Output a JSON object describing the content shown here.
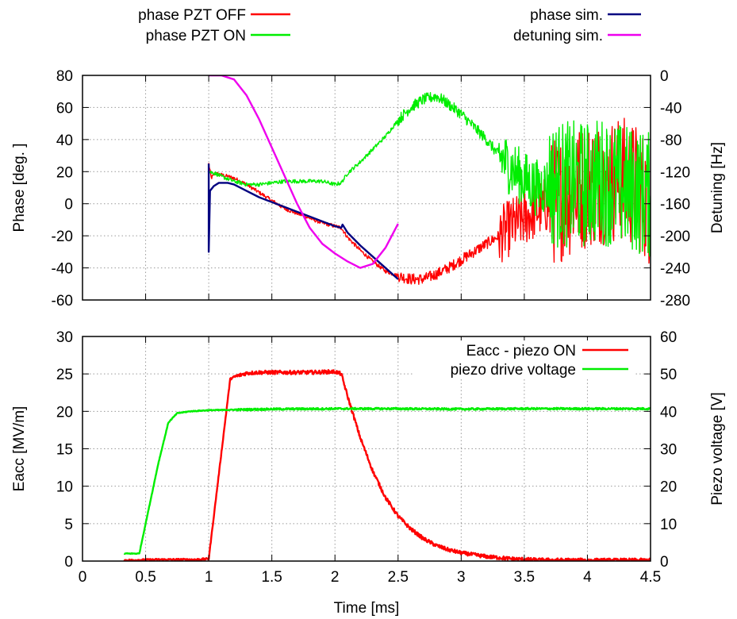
{
  "chart_data": [
    {
      "type": "line",
      "xlabel": "",
      "ylabel": "Phase [deg. ]",
      "y2label": "Detuning [Hz]",
      "xlim": [
        0,
        4.5
      ],
      "ylim": [
        -60,
        80
      ],
      "y2lim": [
        -280,
        0
      ],
      "xticks": [
        "0",
        "0.5",
        "1",
        "1.5",
        "2",
        "2.5",
        "3",
        "3.5",
        "4",
        "4.5"
      ],
      "yticks": [
        "-60",
        "-40",
        "-20",
        "0",
        "20",
        "40",
        "60",
        "80"
      ],
      "y2ticks": [
        "-280",
        "-240",
        "-200",
        "-160",
        "-120",
        "-80",
        "-40",
        "0"
      ],
      "grid": true,
      "legend_position": "top (above plot)",
      "series": [
        {
          "name": "phase PZT OFF",
          "color": "#ff0000",
          "axis": "y",
          "noisy": true,
          "points": [
            [
              1.0,
              25
            ],
            [
              1.02,
              16
            ],
            [
              1.05,
              19
            ],
            [
              1.1,
              18
            ],
            [
              1.2,
              16
            ],
            [
              1.3,
              12
            ],
            [
              1.4,
              7
            ],
            [
              1.5,
              2
            ],
            [
              1.6,
              -3
            ],
            [
              1.7,
              -6
            ],
            [
              1.8,
              -9
            ],
            [
              1.9,
              -12
            ],
            [
              2.0,
              -14
            ],
            [
              2.05,
              -15
            ],
            [
              2.1,
              -21
            ],
            [
              2.2,
              -29
            ],
            [
              2.3,
              -36
            ],
            [
              2.4,
              -42
            ],
            [
              2.5,
              -45
            ],
            [
              2.6,
              -47
            ],
            [
              2.7,
              -47
            ],
            [
              2.8,
              -44
            ],
            [
              2.9,
              -40
            ],
            [
              3.0,
              -35
            ],
            [
              3.1,
              -30
            ],
            [
              3.2,
              -25
            ],
            [
              3.3,
              -20
            ],
            [
              3.4,
              -14
            ],
            [
              3.5,
              -9
            ],
            [
              3.6,
              -4
            ],
            [
              3.7,
              0
            ],
            [
              3.8,
              4
            ],
            [
              3.9,
              8
            ],
            [
              4.0,
              12
            ],
            [
              4.1,
              14
            ],
            [
              4.2,
              15
            ],
            [
              4.3,
              15
            ],
            [
              4.4,
              10
            ],
            [
              4.45,
              5
            ],
            [
              4.5,
              0
            ]
          ]
        },
        {
          "name": "phase PZT ON",
          "color": "#00ee00",
          "axis": "y",
          "noisy": true,
          "points": [
            [
              1.0,
              20
            ],
            [
              1.05,
              19
            ],
            [
              1.1,
              17
            ],
            [
              1.2,
              14
            ],
            [
              1.3,
              12
            ],
            [
              1.4,
              12
            ],
            [
              1.5,
              13
            ],
            [
              1.6,
              14
            ],
            [
              1.7,
              14
            ],
            [
              1.8,
              14
            ],
            [
              1.9,
              14
            ],
            [
              2.0,
              12
            ],
            [
              2.05,
              13
            ],
            [
              2.1,
              19
            ],
            [
              2.2,
              26
            ],
            [
              2.3,
              34
            ],
            [
              2.4,
              42
            ],
            [
              2.5,
              52
            ],
            [
              2.6,
              60
            ],
            [
              2.7,
              65
            ],
            [
              2.8,
              67
            ],
            [
              2.85,
              65
            ],
            [
              2.9,
              62
            ],
            [
              3.0,
              56
            ],
            [
              3.1,
              48
            ],
            [
              3.2,
              40
            ],
            [
              3.3,
              30
            ],
            [
              3.4,
              22
            ],
            [
              3.5,
              15
            ],
            [
              3.6,
              10
            ],
            [
              3.7,
              12
            ],
            [
              3.8,
              12
            ],
            [
              3.9,
              12
            ],
            [
              4.0,
              12
            ],
            [
              4.1,
              15
            ],
            [
              4.2,
              12
            ],
            [
              4.3,
              10
            ],
            [
              4.4,
              8
            ],
            [
              4.5,
              5
            ]
          ]
        },
        {
          "name": "phase sim.",
          "color": "#000080",
          "axis": "y",
          "noisy": false,
          "points": [
            [
              1.0,
              25
            ],
            [
              1.0,
              -30
            ],
            [
              1.01,
              8
            ],
            [
              1.04,
              11
            ],
            [
              1.08,
              13
            ],
            [
              1.15,
              13
            ],
            [
              1.2,
              12
            ],
            [
              1.3,
              8
            ],
            [
              1.4,
              4
            ],
            [
              1.5,
              1
            ],
            [
              1.6,
              -2
            ],
            [
              1.7,
              -5
            ],
            [
              1.8,
              -8
            ],
            [
              1.9,
              -11
            ],
            [
              2.0,
              -14
            ],
            [
              2.05,
              -15
            ],
            [
              2.06,
              -13
            ],
            [
              2.1,
              -18
            ],
            [
              2.2,
              -26
            ],
            [
              2.3,
              -33
            ],
            [
              2.4,
              -40
            ],
            [
              2.5,
              -47
            ]
          ]
        },
        {
          "name": "detuning sim.",
          "color": "#ee00ee",
          "axis": "y2",
          "noisy": false,
          "points": [
            [
              1.0,
              0
            ],
            [
              1.1,
              0
            ],
            [
              1.2,
              -5
            ],
            [
              1.3,
              -25
            ],
            [
              1.4,
              -55
            ],
            [
              1.5,
              -90
            ],
            [
              1.6,
              -125
            ],
            [
              1.7,
              -160
            ],
            [
              1.8,
              -190
            ],
            [
              1.9,
              -210
            ],
            [
              2.0,
              -222
            ],
            [
              2.1,
              -232
            ],
            [
              2.2,
              -240
            ],
            [
              2.3,
              -235
            ],
            [
              2.4,
              -215
            ],
            [
              2.5,
              -185
            ]
          ]
        }
      ]
    },
    {
      "type": "line",
      "xlabel": "Time [ms]",
      "ylabel": "Eacc [MV/m]",
      "y2label": "Piezo voltage [V]",
      "xlim": [
        0,
        4.5
      ],
      "ylim": [
        0,
        30
      ],
      "y2lim": [
        0,
        60
      ],
      "xticks": [
        "0",
        "0.5",
        "1",
        "1.5",
        "2",
        "2.5",
        "3",
        "3.5",
        "4",
        "4.5"
      ],
      "yticks": [
        "0",
        "5",
        "10",
        "15",
        "20",
        "25",
        "30"
      ],
      "y2ticks": [
        "0",
        "10",
        "20",
        "30",
        "40",
        "50",
        "60"
      ],
      "grid": true,
      "legend_position": "top-right",
      "series": [
        {
          "name": "Eacc - piezo ON",
          "color": "#ff0000",
          "axis": "y",
          "noisy": false,
          "points": [
            [
              0.33,
              0.1
            ],
            [
              0.6,
              0.2
            ],
            [
              0.9,
              0.2
            ],
            [
              1.0,
              0.3
            ],
            [
              1.17,
              24.3
            ],
            [
              1.2,
              24.6
            ],
            [
              1.3,
              25.1
            ],
            [
              1.4,
              25.2
            ],
            [
              1.6,
              25.2
            ],
            [
              1.8,
              25.2
            ],
            [
              2.0,
              25.3
            ],
            [
              2.05,
              25.0
            ],
            [
              2.1,
              22.0
            ],
            [
              2.2,
              16.5
            ],
            [
              2.3,
              12.0
            ],
            [
              2.4,
              8.5
            ],
            [
              2.5,
              6.0
            ],
            [
              2.6,
              4.3
            ],
            [
              2.7,
              3.0
            ],
            [
              2.8,
              2.1
            ],
            [
              2.9,
              1.5
            ],
            [
              3.0,
              1.1
            ],
            [
              3.2,
              0.6
            ],
            [
              3.4,
              0.3
            ],
            [
              3.6,
              0.15
            ],
            [
              4.0,
              0.1
            ],
            [
              4.5,
              0.1
            ]
          ]
        },
        {
          "name": "piezo drive voltage",
          "color": "#00ee00",
          "axis": "y2",
          "noisy": false,
          "points": [
            [
              0.33,
              2
            ],
            [
              0.4,
              2
            ],
            [
              0.45,
              2
            ],
            [
              0.5,
              10
            ],
            [
              0.6,
              26
            ],
            [
              0.68,
              37
            ],
            [
              0.75,
              39.5
            ],
            [
              0.85,
              40
            ],
            [
              1.0,
              40.3
            ],
            [
              1.5,
              40.6
            ],
            [
              2.0,
              40.7
            ],
            [
              2.5,
              40.7
            ],
            [
              3.0,
              40.6
            ],
            [
              3.5,
              40.7
            ],
            [
              4.0,
              40.7
            ],
            [
              4.5,
              40.7
            ]
          ]
        }
      ]
    }
  ]
}
